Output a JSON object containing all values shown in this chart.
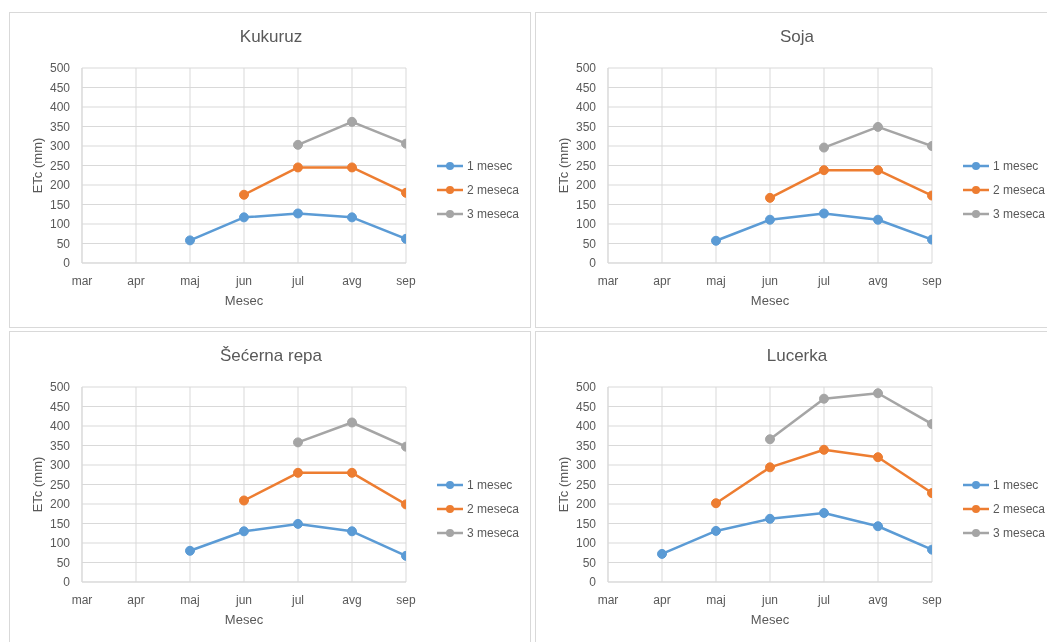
{
  "chart_data": [
    {
      "type": "line",
      "title": "Kukuruz",
      "xlabel": "Mesec",
      "ylabel": "ETc (mm)",
      "categories": [
        "mar",
        "apr",
        "maj",
        "jun",
        "jul",
        "avg",
        "sep"
      ],
      "series": [
        {
          "name": "1 mesec",
          "color": "#5b9bd5",
          "values": [
            null,
            null,
            58,
            117,
            127,
            117,
            62
          ]
        },
        {
          "name": "2 meseca",
          "color": "#ed7d31",
          "values": [
            null,
            null,
            null,
            175,
            245,
            245,
            180
          ]
        },
        {
          "name": "3 meseca",
          "color": "#a5a5a5",
          "values": [
            null,
            null,
            null,
            null,
            303,
            362,
            306
          ]
        }
      ],
      "ylim": [
        0,
        500
      ],
      "yticks": [
        0,
        50,
        100,
        150,
        200,
        250,
        300,
        350,
        400,
        450,
        500
      ],
      "grid": true,
      "legend": "right",
      "marker": "circle"
    },
    {
      "type": "line",
      "title": "Soja",
      "xlabel": "Mesec",
      "ylabel": "ETc (mm)",
      "categories": [
        "mar",
        "apr",
        "maj",
        "jun",
        "jul",
        "avg",
        "sep"
      ],
      "series": [
        {
          "name": "1 mesec",
          "color": "#5b9bd5",
          "values": [
            null,
            null,
            57,
            111,
            127,
            111,
            60
          ]
        },
        {
          "name": "2 meseca",
          "color": "#ed7d31",
          "values": [
            null,
            null,
            null,
            167,
            238,
            238,
            173
          ]
        },
        {
          "name": "3 meseca",
          "color": "#a5a5a5",
          "values": [
            null,
            null,
            null,
            null,
            296,
            349,
            300
          ]
        }
      ],
      "ylim": [
        0,
        500
      ],
      "yticks": [
        0,
        50,
        100,
        150,
        200,
        250,
        300,
        350,
        400,
        450,
        500
      ],
      "grid": true,
      "legend": "right",
      "marker": "circle"
    },
    {
      "type": "line",
      "title": "Šećerna repa",
      "xlabel": "Mesec",
      "ylabel": "ETc (mm)",
      "categories": [
        "mar",
        "apr",
        "maj",
        "jun",
        "jul",
        "avg",
        "sep"
      ],
      "series": [
        {
          "name": "1 mesec",
          "color": "#5b9bd5",
          "values": [
            null,
            null,
            80,
            130,
            149,
            130,
            67
          ]
        },
        {
          "name": "2 meseca",
          "color": "#ed7d31",
          "values": [
            null,
            null,
            null,
            209,
            280,
            280,
            199
          ]
        },
        {
          "name": "3 meseca",
          "color": "#a5a5a5",
          "values": [
            null,
            null,
            null,
            null,
            358,
            409,
            347
          ]
        }
      ],
      "ylim": [
        0,
        500
      ],
      "yticks": [
        0,
        50,
        100,
        150,
        200,
        250,
        300,
        350,
        400,
        450,
        500
      ],
      "grid": true,
      "legend": "right",
      "marker": "circle"
    },
    {
      "type": "line",
      "title": "Lucerka",
      "xlabel": "Mesec",
      "ylabel": "ETc (mm)",
      "categories": [
        "mar",
        "apr",
        "maj",
        "jun",
        "jul",
        "avg",
        "sep"
      ],
      "series": [
        {
          "name": "1 mesec",
          "color": "#5b9bd5",
          "values": [
            null,
            72,
            131,
            162,
            177,
            143,
            83
          ]
        },
        {
          "name": "2 meseca",
          "color": "#ed7d31",
          "values": [
            null,
            null,
            202,
            294,
            339,
            320,
            228
          ]
        },
        {
          "name": "3 meseca",
          "color": "#a5a5a5",
          "values": [
            null,
            null,
            null,
            366,
            470,
            484,
            405
          ]
        }
      ],
      "ylim": [
        0,
        500
      ],
      "yticks": [
        0,
        50,
        100,
        150,
        200,
        250,
        300,
        350,
        400,
        450,
        500
      ],
      "grid": true,
      "legend": "right",
      "marker": "circle"
    }
  ]
}
